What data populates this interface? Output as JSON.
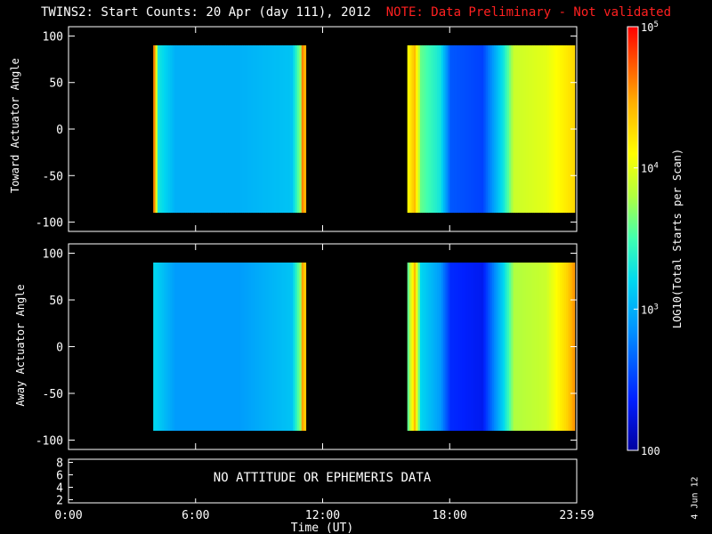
{
  "title": {
    "main": "TWINS2: Start Counts: 20 Apr (day 111), 2012",
    "note": "NOTE: Data Preliminary - Not validated"
  },
  "colors": {
    "background": "#000000",
    "note": "#ff2020",
    "axis": "#ffffff"
  },
  "panels": {
    "top": {
      "ylabel": "Toward Actuator Angle"
    },
    "bottom": {
      "ylabel": "Away Actuator Angle"
    },
    "small": {
      "message": "NO ATTITUDE OR EPHEMERIS DATA"
    }
  },
  "xaxis": {
    "label": "Time (UT)"
  },
  "colorbar": {
    "label": "LOG10(Total Starts per Scan)"
  },
  "plot_date": "4 Jun 12",
  "chart_data": [
    {
      "type": "heatmap",
      "name": "Toward Actuator Angle",
      "xlabel": "Time (UT)",
      "ylabel": "Toward Actuator Angle",
      "x_range_hours": [
        0,
        24
      ],
      "x_ticks": [
        "0:00",
        "6:00",
        "12:00",
        "18:00",
        "23:59"
      ],
      "ylim": [
        -110,
        110
      ],
      "y_ticks": [
        100,
        50,
        0,
        -50,
        -100
      ],
      "data_y_range": [
        -90,
        90
      ],
      "data_segments_hours": [
        [
          4.0,
          11.2
        ],
        [
          16.0,
          23.9
        ]
      ],
      "color_scale": "log",
      "value_range": [
        100,
        100000
      ],
      "profile_log10": [
        [
          4.0,
          4.6
        ],
        [
          4.2,
          3.3
        ],
        [
          5.0,
          3.0
        ],
        [
          8.0,
          3.0
        ],
        [
          10.5,
          3.1
        ],
        [
          10.9,
          3.7
        ],
        [
          11.0,
          4.6
        ],
        [
          11.2,
          4.3
        ],
        [
          16.0,
          4.1
        ],
        [
          16.3,
          4.4
        ],
        [
          16.6,
          3.6
        ],
        [
          17.5,
          3.3
        ],
        [
          18.0,
          2.6
        ],
        [
          19.5,
          2.5
        ],
        [
          20.5,
          3.3
        ],
        [
          21.0,
          3.9
        ],
        [
          22.5,
          4.0
        ],
        [
          23.5,
          4.2
        ],
        [
          23.9,
          4.3
        ]
      ]
    },
    {
      "type": "heatmap",
      "name": "Away Actuator Angle",
      "xlabel": "Time (UT)",
      "ylabel": "Away Actuator Angle",
      "x_range_hours": [
        0,
        24
      ],
      "x_ticks": [
        "0:00",
        "6:00",
        "12:00",
        "18:00",
        "23:59"
      ],
      "ylim": [
        -110,
        110
      ],
      "y_ticks": [
        100,
        50,
        0,
        -50,
        -100
      ],
      "data_y_range": [
        -90,
        90
      ],
      "data_segments_hours": [
        [
          4.0,
          11.2
        ],
        [
          16.0,
          23.9
        ]
      ],
      "color_scale": "log",
      "value_range": [
        100,
        100000
      ],
      "profile_log10": [
        [
          4.0,
          3.2
        ],
        [
          5.0,
          2.9
        ],
        [
          8.0,
          2.9
        ],
        [
          10.5,
          3.1
        ],
        [
          10.9,
          3.7
        ],
        [
          11.0,
          4.5
        ],
        [
          11.2,
          4.2
        ],
        [
          16.0,
          3.6
        ],
        [
          16.3,
          4.4
        ],
        [
          16.6,
          3.2
        ],
        [
          17.5,
          2.9
        ],
        [
          18.0,
          2.4
        ],
        [
          19.5,
          2.3
        ],
        [
          20.5,
          3.2
        ],
        [
          21.0,
          3.8
        ],
        [
          22.5,
          3.9
        ],
        [
          23.5,
          4.3
        ],
        [
          23.9,
          4.6
        ]
      ]
    },
    {
      "type": "line",
      "name": "attitude",
      "ylim": [
        1.5,
        8.5
      ],
      "y_ticks": [
        8,
        6,
        4,
        2
      ],
      "series": [],
      "annotation": "NO ATTITUDE OR EPHEMERIS DATA"
    },
    {
      "type": "heatmap",
      "name": "colorbar",
      "scale": "log",
      "range": [
        100,
        100000
      ],
      "tick_labels": [
        "10^5",
        "10^4",
        "10^3",
        "100"
      ]
    }
  ]
}
